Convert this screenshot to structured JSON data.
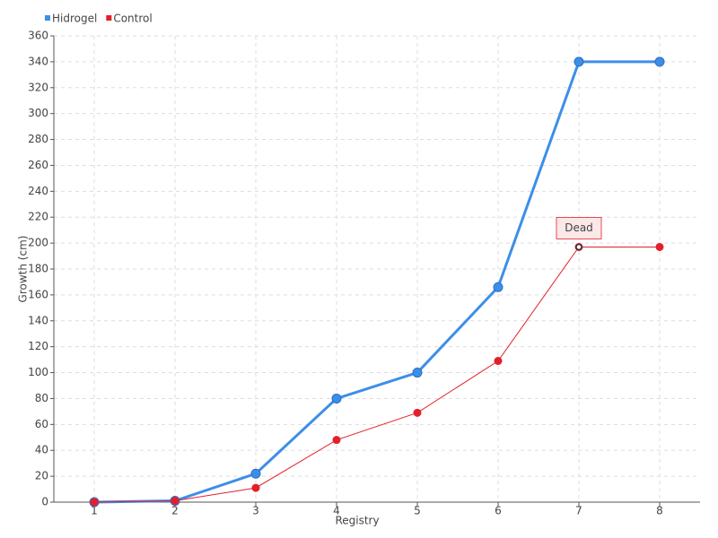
{
  "chart_data": {
    "type": "line",
    "x_label": "Registry",
    "y_label": "Growth (cm)",
    "x": [
      1,
      2,
      3,
      4,
      5,
      6,
      7,
      8
    ],
    "xlim": [
      0.5,
      8.5
    ],
    "xticks": [
      1,
      2,
      3,
      4,
      5,
      6,
      7,
      8
    ],
    "ylim": [
      0,
      360
    ],
    "yticks": [
      0,
      20,
      40,
      60,
      80,
      100,
      120,
      140,
      160,
      180,
      200,
      220,
      240,
      260,
      280,
      300,
      320,
      340,
      360
    ],
    "grid": true,
    "legend": "top-left",
    "series": [
      {
        "name": "Hidrogel",
        "color": "#3d8ee8",
        "values": [
          0,
          1,
          22,
          80,
          100,
          166,
          340,
          340
        ]
      },
      {
        "name": "Control",
        "color": "#e3202a",
        "values": [
          0,
          1,
          11,
          48,
          69,
          109,
          197,
          197
        ]
      }
    ],
    "annotations": [
      {
        "text": "Dead",
        "x": 7,
        "y": 197
      }
    ]
  }
}
